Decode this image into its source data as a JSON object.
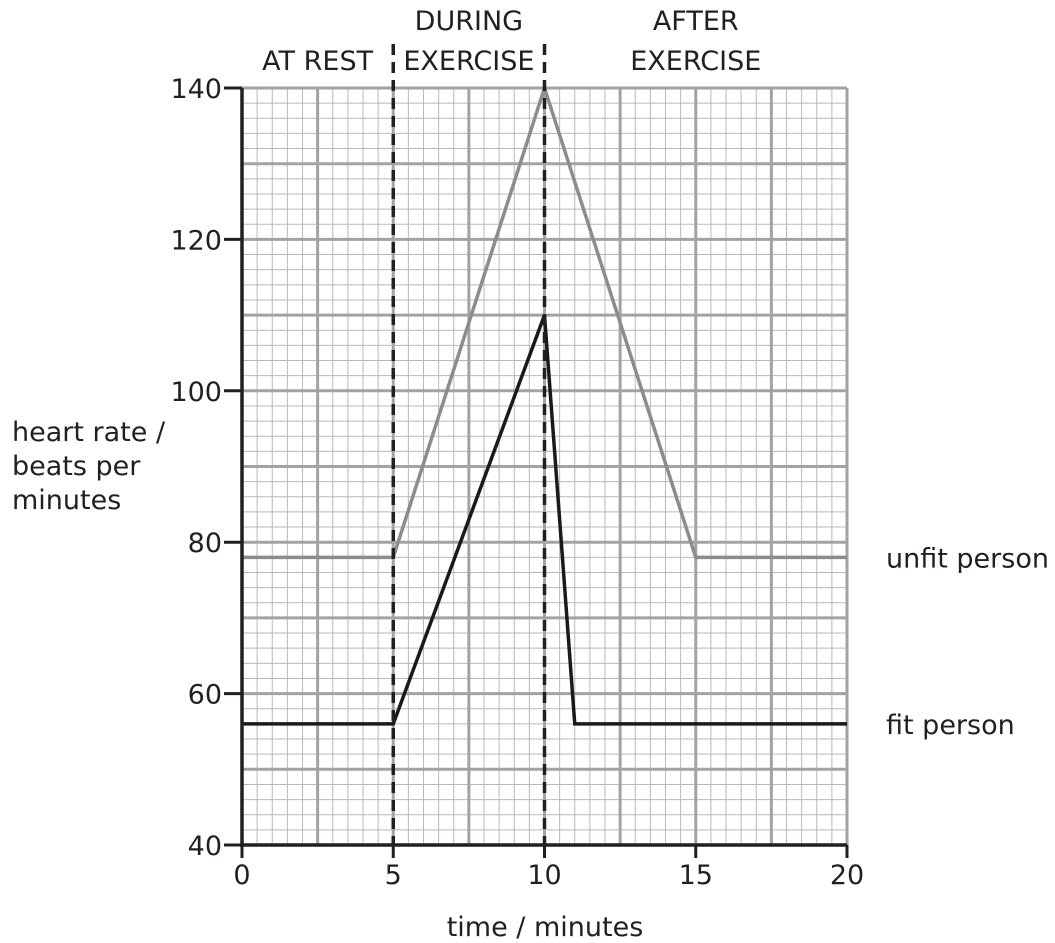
{
  "chart_data": {
    "type": "line",
    "xlabel": "time / minutes",
    "ylabel_lines": [
      "heart rate /",
      "beats per",
      "minutes"
    ],
    "xlim": [
      0,
      20
    ],
    "ylim": [
      40,
      140
    ],
    "x_ticks": [
      0,
      5,
      10,
      15,
      20
    ],
    "y_ticks": [
      40,
      60,
      80,
      100,
      120,
      140
    ],
    "grid": true,
    "grid_minor_x": 0.5,
    "grid_minor_y": 2,
    "phases": [
      {
        "lines": [
          "AT REST"
        ],
        "from": 0,
        "to": 5
      },
      {
        "lines": [
          "DURING",
          "EXERCISE"
        ],
        "from": 5,
        "to": 10
      },
      {
        "lines": [
          "AFTER",
          "EXERCISE"
        ],
        "from": 10,
        "to": 20
      }
    ],
    "phase_boundaries": [
      5,
      10
    ],
    "series": [
      {
        "name": "unfit person",
        "color": "#8c8c8c",
        "points": [
          [
            0,
            78
          ],
          [
            5,
            78
          ],
          [
            10,
            140
          ],
          [
            15,
            78
          ],
          [
            20,
            78
          ]
        ]
      },
      {
        "name": "fit person",
        "color": "#1a1a1a",
        "points": [
          [
            0,
            56
          ],
          [
            5,
            56
          ],
          [
            10,
            110
          ],
          [
            11,
            56
          ],
          [
            20,
            56
          ]
        ]
      }
    ]
  }
}
